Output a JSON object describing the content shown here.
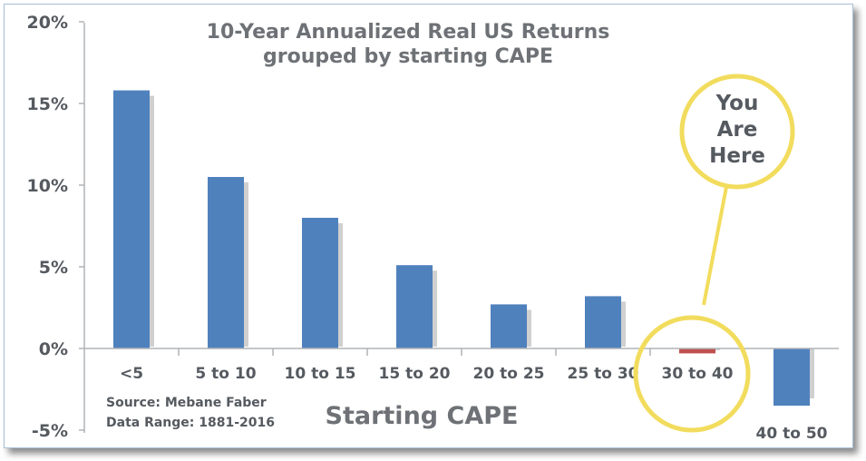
{
  "chart_data": {
    "type": "bar",
    "title": [
      "10-Year Annualized Real US Returns",
      "grouped by starting CAPE"
    ],
    "xlabel": "Starting CAPE",
    "ylabel": "",
    "categories": [
      "<5",
      "5 to 10",
      "10 to 15",
      "15 to 20",
      "20 to 25",
      "25 to 30",
      "30 to 40",
      "40 to 50"
    ],
    "values": [
      15.8,
      10.5,
      8.0,
      5.1,
      2.7,
      3.2,
      -0.3,
      -3.5
    ],
    "ylim": [
      -5,
      20
    ],
    "yticks": [
      20,
      15,
      10,
      5,
      0,
      -5
    ],
    "ytick_labels": [
      "20%",
      "15%",
      "10%",
      "5%",
      "0%",
      "-5%"
    ],
    "source_lines": [
      "Source: Mebane Faber",
      "Data Range: 1881-2016"
    ],
    "annotation": {
      "lines": [
        "You",
        "Are",
        "Here"
      ],
      "target_category": "30 to 40"
    },
    "colors": {
      "bar": "#4f81bd",
      "highlight_bar": "#c0504d",
      "bar_shadow": "#d0d0d0",
      "callout_ring": "#f2dc5d",
      "text": "#555a60"
    },
    "grid": false,
    "legend": "none"
  }
}
